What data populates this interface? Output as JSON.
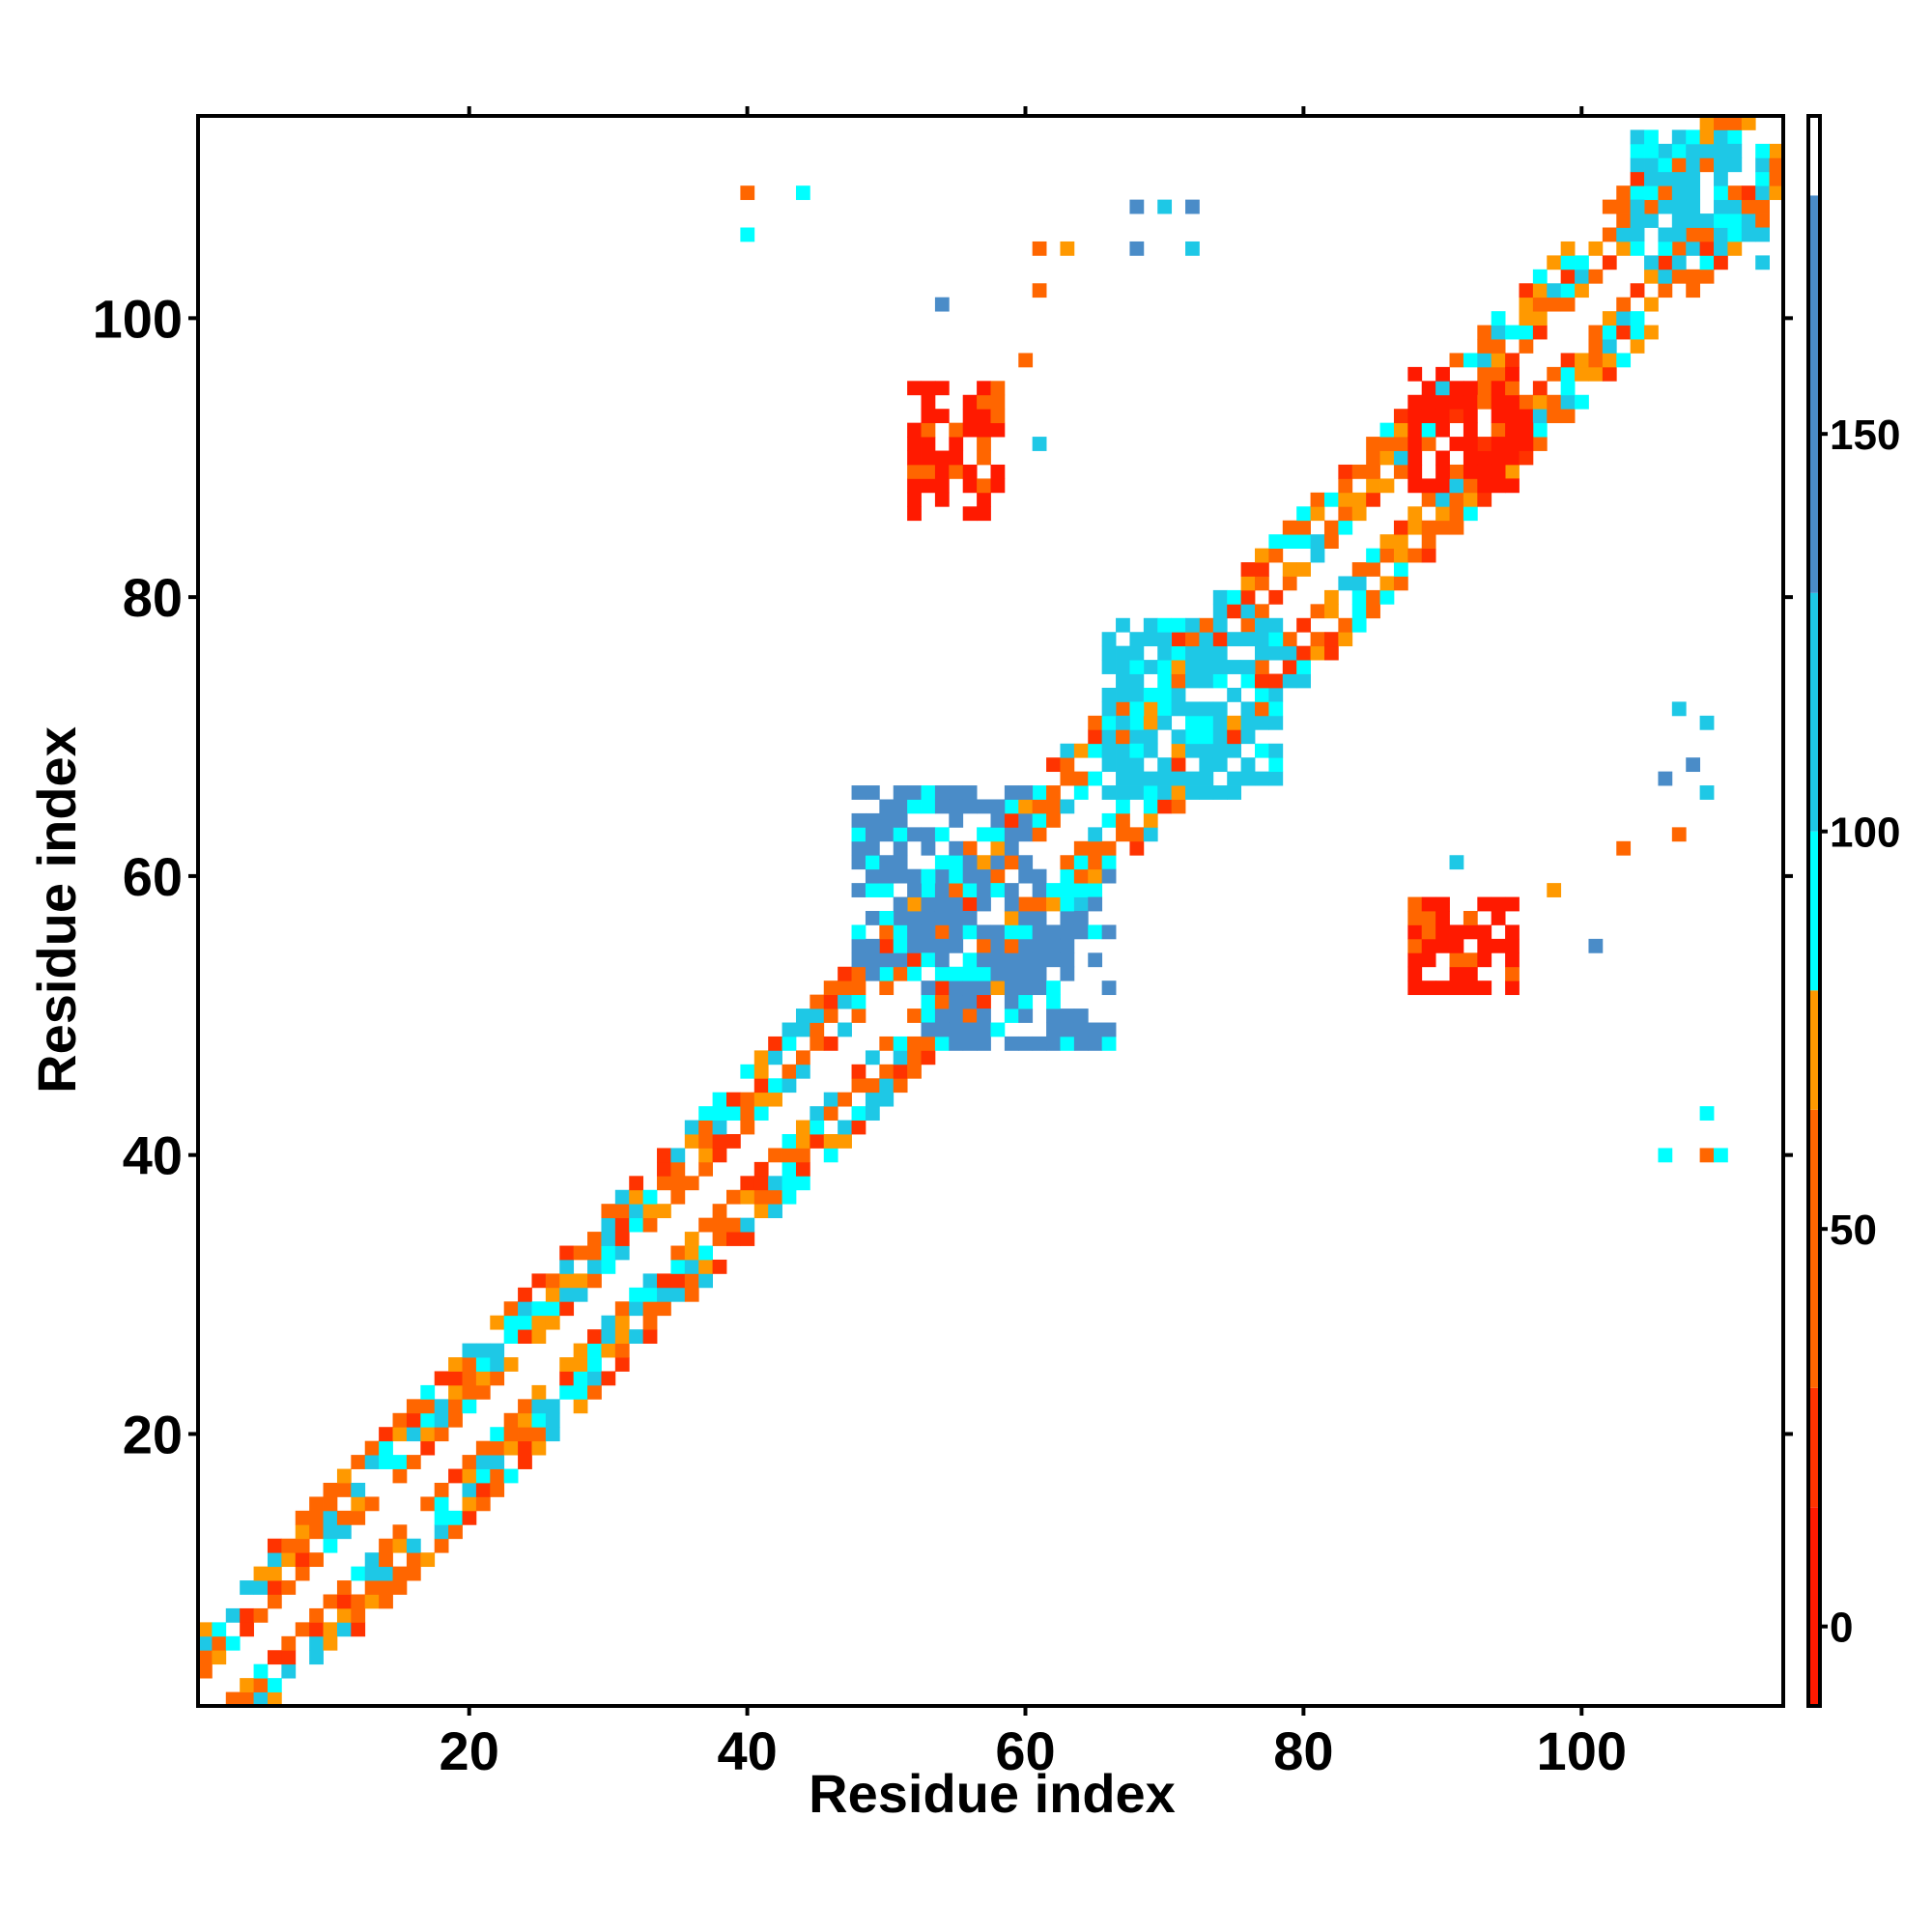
{
  "chart_data": {
    "type": "heatmap",
    "title": "",
    "xlabel": "Residue index",
    "ylabel": "Residue index",
    "xlim": [
      0.5,
      114.5
    ],
    "ylim": [
      0.5,
      114.5
    ],
    "xticks": [
      20,
      40,
      60,
      80,
      100
    ],
    "yticks": [
      20,
      40,
      60,
      80,
      100
    ],
    "grid": false,
    "colorbar": {
      "ticks": [
        0,
        50,
        100,
        150
      ],
      "range": [
        -10,
        190
      ],
      "segments": [
        {
          "from": -10,
          "to": 15,
          "color": "#ff1a00"
        },
        {
          "from": 15,
          "to": 30,
          "color": "#ff3300"
        },
        {
          "from": 30,
          "to": 65,
          "color": "#ff6600"
        },
        {
          "from": 65,
          "to": 80,
          "color": "#ff9900"
        },
        {
          "from": 80,
          "to": 100,
          "color": "#00ffff"
        },
        {
          "from": 100,
          "to": 130,
          "color": "#1ec8e6"
        },
        {
          "from": 130,
          "to": 180,
          "color": "#4a8cc8"
        },
        {
          "from": 180,
          "to": 190,
          "color": "#ffffff"
        }
      ]
    },
    "note_values": "cell values are estimated contact angle values in colorbar units",
    "diagonal_band": {
      "min_offset": 2,
      "max_offset": 6
    },
    "regions": [
      {
        "x": [
          88,
          96
        ],
        "y": [
          88,
          96
        ],
        "value": 5
      },
      {
        "x": [
          52,
          58
        ],
        "y": [
          86,
          95
        ],
        "value": 10
      },
      {
        "x": [
          88,
          95
        ],
        "y": [
          52,
          58
        ],
        "value": 10
      },
      {
        "x": [
          48,
          60
        ],
        "y": [
          53,
          66
        ],
        "value": 150
      },
      {
        "x": [
          53,
          66
        ],
        "y": [
          48,
          60
        ],
        "value": 150
      },
      {
        "x": [
          66,
          78
        ],
        "y": [
          66,
          78
        ],
        "value": 110
      },
      {
        "x": [
          104,
          113
        ],
        "y": [
          104,
          113
        ],
        "value": 110
      }
    ],
    "isolated_cells": [
      {
        "x": 40,
        "y": 109,
        "value": 60
      },
      {
        "x": 44,
        "y": 109,
        "value": 90
      },
      {
        "x": 40,
        "y": 106,
        "value": 90
      },
      {
        "x": 68,
        "y": 108,
        "value": 150
      },
      {
        "x": 70,
        "y": 108,
        "value": 110
      },
      {
        "x": 72,
        "y": 108,
        "value": 150
      },
      {
        "x": 68,
        "y": 105,
        "value": 150
      },
      {
        "x": 72,
        "y": 105,
        "value": 110
      },
      {
        "x": 61,
        "y": 105,
        "value": 60
      },
      {
        "x": 63,
        "y": 105,
        "value": 70
      },
      {
        "x": 61,
        "y": 102,
        "value": 50
      },
      {
        "x": 54,
        "y": 101,
        "value": 150
      },
      {
        "x": 60,
        "y": 97,
        "value": 60
      },
      {
        "x": 61,
        "y": 91,
        "value": 110
      },
      {
        "x": 107,
        "y": 72,
        "value": 110
      },
      {
        "x": 109,
        "y": 71,
        "value": 110
      },
      {
        "x": 108,
        "y": 68,
        "value": 150
      },
      {
        "x": 106,
        "y": 67,
        "value": 150
      },
      {
        "x": 109,
        "y": 66,
        "value": 110
      },
      {
        "x": 107,
        "y": 63,
        "value": 60
      },
      {
        "x": 103,
        "y": 62,
        "value": 60
      },
      {
        "x": 101,
        "y": 55,
        "value": 150
      },
      {
        "x": 91,
        "y": 61,
        "value": 110
      },
      {
        "x": 98,
        "y": 59,
        "value": 70
      },
      {
        "x": 109,
        "y": 43,
        "value": 90
      },
      {
        "x": 106,
        "y": 40,
        "value": 90
      },
      {
        "x": 109,
        "y": 40,
        "value": 60
      },
      {
        "x": 110,
        "y": 40,
        "value": 90
      }
    ]
  }
}
